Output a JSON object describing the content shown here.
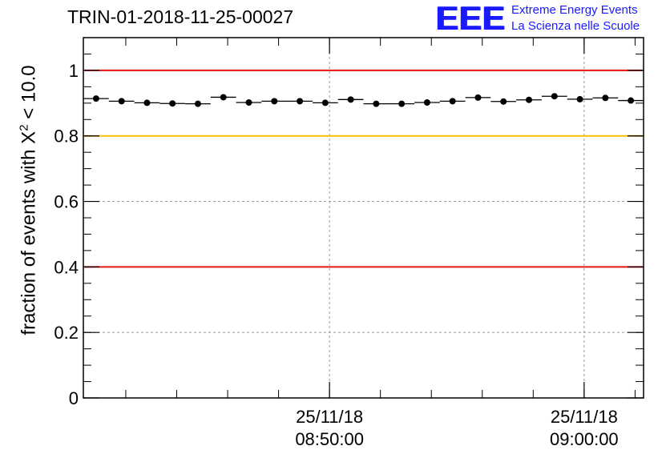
{
  "header": {
    "run_title": "TRIN-01-2018-11-25-00027",
    "logo_mark": "EEE",
    "logo_line1": "Extreme Energy Events",
    "logo_line2": "La Scienza nelle Scuole"
  },
  "chart_data": {
    "type": "scatter",
    "title": "TRIN-01-2018-11-25-00027",
    "ylabel_prefix": "fraction of events with ",
    "ylabel_symbol": "X",
    "ylabel_exponent": "2",
    "ylabel_suffix": " < 10.0",
    "ylim": [
      0,
      1.1
    ],
    "yticks": [
      0,
      0.2,
      0.4,
      0.6,
      0.8,
      1
    ],
    "ytick_labels": [
      "0",
      "0.2",
      "0.4",
      "0.6",
      "0.8",
      "1"
    ],
    "xlim": [
      "08:40:20",
      "09:02:20"
    ],
    "xticks": [
      {
        "time": "08:50:00",
        "date_label": "25/11/18",
        "time_label": "08:50:00"
      },
      {
        "time": "09:00:00",
        "date_label": "25/11/18",
        "time_label": "09:00:00"
      }
    ],
    "grid": true,
    "reference_lines": [
      {
        "y": 1.0,
        "color": "#e8140f"
      },
      {
        "y": 0.8,
        "color": "#f5c000"
      },
      {
        "y": 0.4,
        "color": "#e8140f"
      }
    ],
    "point_color": "#000000",
    "bin_width_seconds": 60,
    "x": [
      "08:40:50",
      "08:41:50",
      "08:42:50",
      "08:43:50",
      "08:44:50",
      "08:45:50",
      "08:46:50",
      "08:47:50",
      "08:48:50",
      "08:49:50",
      "08:50:50",
      "08:51:50",
      "08:52:50",
      "08:53:50",
      "08:54:50",
      "08:55:50",
      "08:56:50",
      "08:57:50",
      "08:58:50",
      "08:59:50",
      "09:00:50",
      "09:01:50"
    ],
    "y": [
      0.914,
      0.906,
      0.901,
      0.899,
      0.898,
      0.918,
      0.902,
      0.906,
      0.906,
      0.901,
      0.911,
      0.898,
      0.898,
      0.902,
      0.906,
      0.917,
      0.905,
      0.91,
      0.921,
      0.912,
      0.916,
      0.908
    ]
  }
}
